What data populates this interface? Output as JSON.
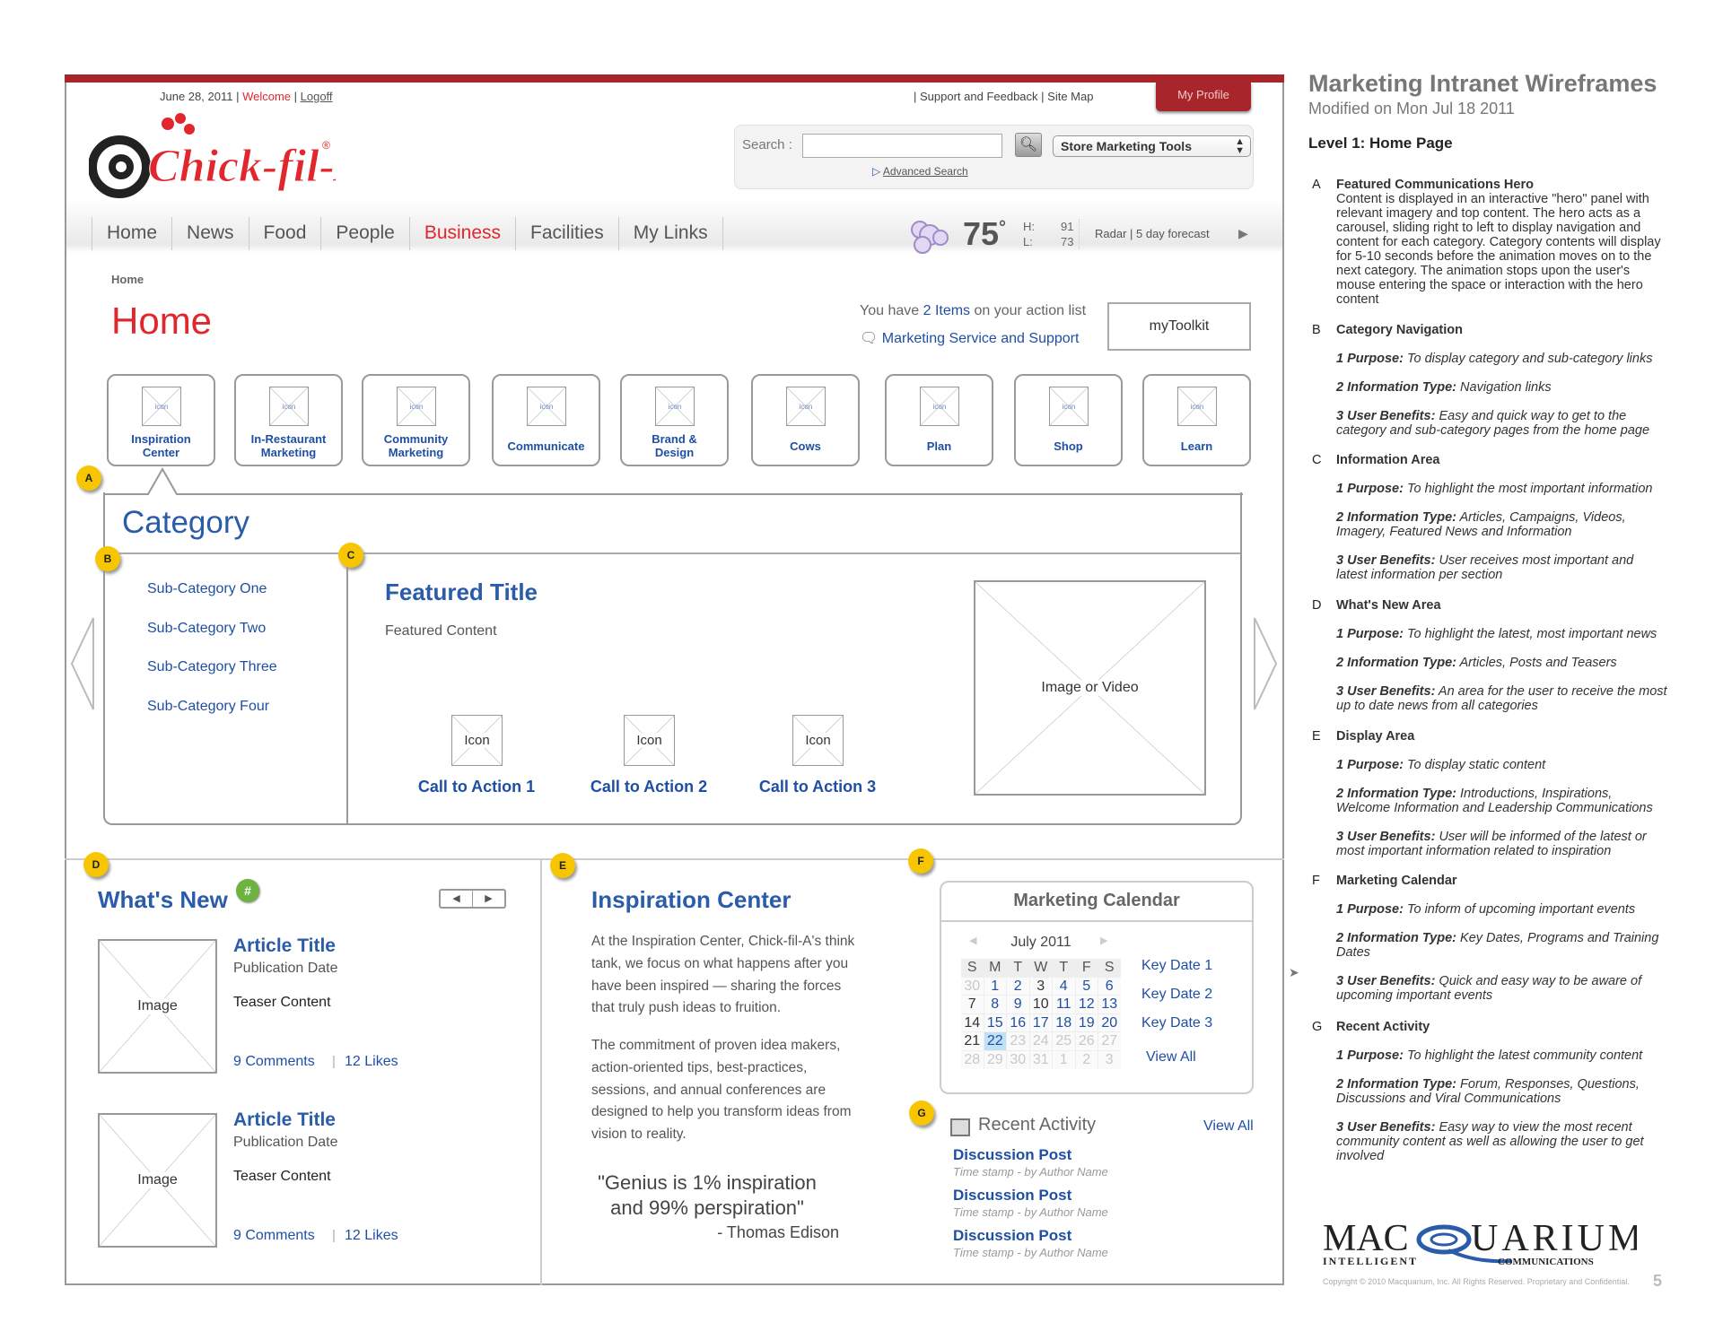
{
  "topbar": {
    "date": "June 28, 2011",
    "welcome": "Welcome",
    "logoff": "Logoff",
    "support": "Support and Feedback",
    "sitemap": "Site Map",
    "profile": "My Profile"
  },
  "logo_text": "@Chick-fil-A",
  "search": {
    "label": "Search :",
    "value": "",
    "select": "Store Marketing Tools",
    "advanced": "Advanced Search"
  },
  "nav": [
    "Home",
    "News",
    "Food",
    "People",
    "Business",
    "Facilities",
    "My Links"
  ],
  "nav_active": "Business",
  "weather": {
    "temp": "75",
    "deg": "°",
    "h_label": "H:",
    "l_label": "L:",
    "high": "91",
    "low": "73",
    "links": "Radar | 5 day forecast"
  },
  "page": {
    "breadcrumb": "Home",
    "title": "Home",
    "action_pre": "You have ",
    "action_count": "2 Items",
    "action_post": " on your action list",
    "service": "Marketing Service and Support",
    "toolkit": "myToolkit"
  },
  "categories": [
    {
      "icon": "icon",
      "label": "Inspiration Center"
    },
    {
      "icon": "icon",
      "label": "In-Restaurant Marketing"
    },
    {
      "icon": "icon",
      "label": "Community Marketing"
    },
    {
      "icon": "icon",
      "label": "Communicate"
    },
    {
      "icon": "icon",
      "label": "Brand & Design"
    },
    {
      "icon": "icon",
      "label": "Cows"
    },
    {
      "icon": "icon",
      "label": "Plan"
    },
    {
      "icon": "icon",
      "label": "Shop"
    },
    {
      "icon": "icon",
      "label": "Learn"
    }
  ],
  "markers": {
    "a": "A",
    "b": "B",
    "c": "C",
    "d": "D",
    "e": "E",
    "f": "F",
    "g": "G"
  },
  "hero": {
    "title": "Category",
    "subcategories": [
      "Sub-Category One",
      "Sub-Category Two",
      "Sub-Category Three",
      "Sub-Category Four"
    ],
    "featured_title": "Featured Title",
    "featured_content": "Featured Content",
    "ctas": [
      {
        "icon": "Icon",
        "label": "Call to Action 1"
      },
      {
        "icon": "Icon",
        "label": "Call to Action 2"
      },
      {
        "icon": "Icon",
        "label": "Call to Action 3"
      }
    ],
    "media": "Image or Video"
  },
  "whats_new": {
    "title": "What's New",
    "badge": "#",
    "articles": [
      {
        "image": "Image",
        "title": "Article Title",
        "date": "Publication Date",
        "teaser": "Teaser Content",
        "comments": "9 Comments",
        "likes": "12 Likes"
      },
      {
        "image": "Image",
        "title": "Article Title",
        "date": "Publication Date",
        "teaser": "Teaser Content",
        "comments": "9 Comments",
        "likes": "12 Likes"
      }
    ]
  },
  "inspiration": {
    "title": "Inspiration Center",
    "p1": "At the Inspiration Center, Chick-fil-A's think tank, we focus on what happens after you have been inspired — sharing the forces that truly push ideas to fruition.",
    "p2": "The commitment of proven idea makers, action-oriented tips, best-practices, sessions, and annual conferences are designed to help you transform ideas from vision to reality.",
    "quote": "\"Genius is 1% inspiration and 99% perspiration\"",
    "author": "- Thomas Edison"
  },
  "calendar": {
    "title": "Marketing Calendar",
    "month": "July 2011",
    "days": [
      "S",
      "M",
      "T",
      "W",
      "T",
      "F",
      "S"
    ],
    "weeks": [
      [
        {
          "d": 30,
          "s": "muted"
        },
        {
          "d": 1,
          "s": "link"
        },
        {
          "d": 2,
          "s": "link"
        },
        {
          "d": 3,
          "s": "plain"
        },
        {
          "d": 4,
          "s": "link"
        },
        {
          "d": 5,
          "s": "link"
        },
        {
          "d": 6,
          "s": "link"
        }
      ],
      [
        {
          "d": 7,
          "s": "plain"
        },
        {
          "d": 8,
          "s": "link"
        },
        {
          "d": 9,
          "s": "link"
        },
        {
          "d": 10,
          "s": "plain"
        },
        {
          "d": 11,
          "s": "link"
        },
        {
          "d": 12,
          "s": "link"
        },
        {
          "d": 13,
          "s": "link"
        }
      ],
      [
        {
          "d": 14,
          "s": "plain"
        },
        {
          "d": 15,
          "s": "link"
        },
        {
          "d": 16,
          "s": "link"
        },
        {
          "d": 17,
          "s": "link"
        },
        {
          "d": 18,
          "s": "link"
        },
        {
          "d": 19,
          "s": "link"
        },
        {
          "d": 20,
          "s": "link"
        }
      ],
      [
        {
          "d": 21,
          "s": "plain"
        },
        {
          "d": 22,
          "s": "today"
        },
        {
          "d": 23,
          "s": "muted"
        },
        {
          "d": 24,
          "s": "muted"
        },
        {
          "d": 25,
          "s": "muted"
        },
        {
          "d": 26,
          "s": "muted"
        },
        {
          "d": 27,
          "s": "muted"
        }
      ],
      [
        {
          "d": 28,
          "s": "muted"
        },
        {
          "d": 29,
          "s": "muted"
        },
        {
          "d": 30,
          "s": "muted"
        },
        {
          "d": 31,
          "s": "muted"
        },
        {
          "d": 1,
          "s": "muted"
        },
        {
          "d": 2,
          "s": "muted"
        },
        {
          "d": 3,
          "s": "muted"
        }
      ]
    ],
    "key_dates": [
      "Key Date 1",
      "Key Date 2",
      "Key Date 3"
    ],
    "view_all": "View All"
  },
  "recent": {
    "title": "Recent Activity",
    "view_all": "View All",
    "posts": [
      {
        "title": "Discussion Post",
        "meta": "Time stamp - by Author Name"
      },
      {
        "title": "Discussion Post",
        "meta": "Time stamp - by Author Name"
      },
      {
        "title": "Discussion Post",
        "meta": "Time stamp - by Author Name"
      }
    ]
  },
  "notes": {
    "title": "Marketing Intranet Wireframes",
    "modified": "Modified on Mon Jul 18 2011",
    "level": "Level 1: Home Page",
    "sections": [
      {
        "letter": "A",
        "heading": "Featured Communications Hero",
        "body": "Content is displayed in an interactive \"hero\" panel with relevant imagery and top content. The hero acts as a carousel, sliding right to left to display navigation and content for each category. Category contents will display for 5-10 seconds before the animation moves on to the next category. The animation stops upon the user's mouse entering the space or interaction with the hero content",
        "items": []
      },
      {
        "letter": "B",
        "heading": "Category Navigation",
        "items": [
          {
            "k": "1 Purpose:",
            "v": "To display category and sub-category links"
          },
          {
            "k": "2 Information Type:",
            "v": "Navigation links"
          },
          {
            "k": "3 User Benefits:",
            "v": "Easy and quick way to get to the category and sub-category pages from the home page"
          }
        ]
      },
      {
        "letter": "C",
        "heading": "Information Area",
        "items": [
          {
            "k": "1 Purpose:",
            "v": "To highlight the most important information"
          },
          {
            "k": "2 Information Type:",
            "v": "Articles, Campaigns, Videos, Imagery,  Featured News and Information"
          },
          {
            "k": "3 User Benefits:",
            "v": "User receives most important and latest information per section"
          }
        ]
      },
      {
        "letter": "D",
        "heading": "What's New Area",
        "items": [
          {
            "k": "1 Purpose:",
            "v": "To highlight the latest, most important news"
          },
          {
            "k": "2 Information Type:",
            "v": "Articles, Posts and Teasers"
          },
          {
            "k": "3 User Benefits:",
            "v": "An area for the user to receive the most up to date news from all categories"
          }
        ]
      },
      {
        "letter": "E",
        "heading": "Display Area",
        "items": [
          {
            "k": "1 Purpose:",
            "v": "To display static content"
          },
          {
            "k": "2 Information Type:",
            "v": "Introductions, Inspirations, Welcome Information and Leadership Communications"
          },
          {
            "k": "3 User Benefits:",
            "v": "User will be informed of the latest or most important information related to inspiration"
          }
        ]
      },
      {
        "letter": "F",
        "heading": "Marketing Calendar",
        "items": [
          {
            "k": "1 Purpose:",
            "v": "To inform of upcoming important events"
          },
          {
            "k": "2 Information Type:",
            "v": "Key Dates, Programs and Training Dates"
          },
          {
            "k": "3 User Benefits:",
            "v": "Quick and easy way to be aware of upcoming important events"
          }
        ]
      },
      {
        "letter": "G",
        "heading": "Recent Activity",
        "items": [
          {
            "k": "1 Purpose:",
            "v": "To highlight the latest community content"
          },
          {
            "k": "2 Information Type:",
            "v": "Forum, Responses, Questions, Discussions and Viral Communications"
          },
          {
            "k": "3 User Benefits:",
            "v": "Easy way to view the most recent community content as well as allowing the user to get involved"
          }
        ]
      }
    ]
  },
  "footer": {
    "logo_text": "MACQUARIUM INTELLIGENT COMMUNICATIONS",
    "copyright": "Copyright © 2010 Macquarium, Inc. All Rights Reserved. Proprietary and Confidential.",
    "page_number": "5"
  },
  "colors": {
    "brand_red": "#a8252b",
    "accent_red": "#e2262d",
    "link_blue": "#1f4fa3",
    "marker_yellow": "#f7c600"
  }
}
